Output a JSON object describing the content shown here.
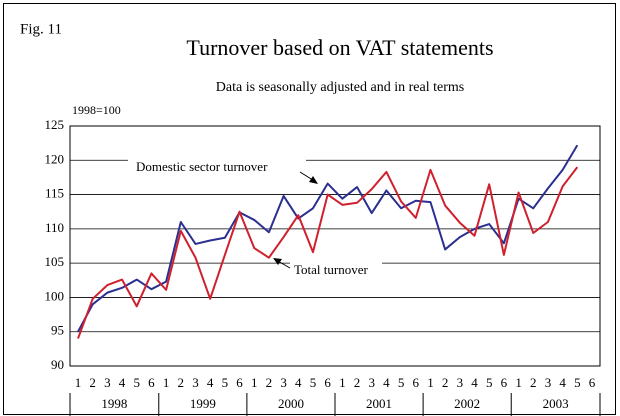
{
  "chart_data": {
    "type": "line",
    "label": "Fig. 11",
    "title": "Turnover based on VAT statements",
    "subtitle": "Data is seasonally adjusted and in real terms",
    "y_label": "1998=100",
    "categories": [
      "1",
      "2",
      "3",
      "4",
      "5",
      "6",
      "1",
      "2",
      "3",
      "4",
      "5",
      "6",
      "1",
      "2",
      "3",
      "4",
      "5",
      "6",
      "1",
      "2",
      "3",
      "4",
      "5",
      "6",
      "1",
      "2",
      "3",
      "4",
      "5",
      "6",
      "1",
      "2",
      "3",
      "4",
      "5",
      "6"
    ],
    "year_groups": [
      "1998",
      "1999",
      "2000",
      "2001",
      "2002",
      "2003"
    ],
    "series": [
      {
        "name": "Domestic sector turnover",
        "color": "#2b2f8f",
        "values": [
          95.0,
          99.0,
          100.7,
          101.4,
          102.6,
          101.2,
          102.3,
          111.0,
          107.8,
          108.3,
          108.7,
          112.4,
          111.3,
          109.5,
          114.8,
          111.5,
          113.0,
          116.6,
          114.4,
          116.1,
          112.3,
          115.6,
          113.0,
          114.1,
          113.9,
          107.0,
          108.8,
          110.0,
          110.7,
          107.9,
          114.4,
          113.0,
          115.9,
          118.6,
          122.2,
          null
        ]
      },
      {
        "name": "Total turnover",
        "color": "#d0202e",
        "values": [
          94.0,
          99.8,
          101.8,
          102.6,
          98.7,
          103.5,
          101.1,
          109.7,
          105.8,
          99.8,
          106.2,
          112.5,
          107.2,
          105.8,
          108.8,
          112.0,
          106.6,
          115.0,
          113.5,
          113.8,
          115.8,
          118.3,
          114.0,
          111.6,
          118.6,
          113.4,
          110.9,
          109.0,
          116.5,
          106.2,
          115.3,
          109.4,
          111.0,
          116.2,
          119.0,
          null
        ]
      }
    ],
    "ylim": [
      90,
      125
    ],
    "yticks": [
      90,
      95,
      100,
      105,
      110,
      115,
      120,
      125
    ],
    "grid": true
  }
}
